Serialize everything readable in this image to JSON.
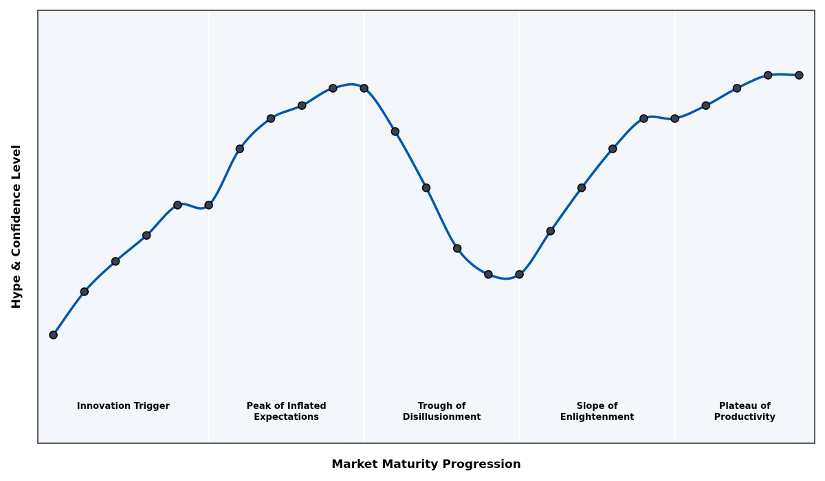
{
  "chart_data": {
    "type": "line",
    "title": "",
    "xlabel": "Market Maturity Progression",
    "ylabel": "Hype & Confidence Level",
    "grid": false,
    "legend": "none",
    "x": [
      0,
      1,
      2,
      3,
      4,
      5,
      6,
      7,
      8,
      9,
      10,
      11,
      12,
      13,
      14,
      15,
      16,
      17,
      18,
      19,
      20,
      21,
      22,
      23,
      24
    ],
    "xlim": [
      -0.5,
      24.5
    ],
    "ylim": [
      0,
      10
    ],
    "series": [
      {
        "values": [
          2.5,
          3.5,
          4.2,
          4.8,
          5.5,
          5.5,
          6.8,
          7.5,
          7.8,
          8.2,
          8.2,
          7.2,
          5.9,
          4.5,
          3.9,
          3.9,
          4.9,
          5.9,
          6.8,
          7.5,
          7.5,
          7.8,
          8.2,
          8.5,
          8.5
        ]
      }
    ],
    "phases": [
      {
        "label": "Innovation Trigger",
        "x_start": -0.5,
        "x_end": 5
      },
      {
        "label": "Peak of Inflated\nExpectations",
        "x_start": 5,
        "x_end": 10
      },
      {
        "label": "Trough of\nDisillusionment",
        "x_start": 10,
        "x_end": 15
      },
      {
        "label": "Slope of\nEnlightenment",
        "x_start": 15,
        "x_end": 20
      },
      {
        "label": "Plateau of\nProductivity",
        "x_start": 20,
        "x_end": 24.5
      }
    ],
    "colors": {
      "line": "#0057ae",
      "marker_fill": "#374151",
      "marker_edge": "#000000",
      "plot_background": "#f3f6fa",
      "phase_divider": "#ffffff",
      "frame": "#333333"
    }
  }
}
